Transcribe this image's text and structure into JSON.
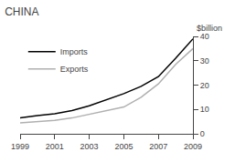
{
  "chart_data": {
    "type": "line",
    "title": "CHINA",
    "ylabel": "$billion",
    "x": [
      1999,
      2000,
      2001,
      2002,
      2003,
      2004,
      2005,
      2006,
      2007,
      2008,
      2009
    ],
    "series": [
      {
        "name": "Imports",
        "color": "#000000",
        "values": [
          6.5,
          7.5,
          8.2,
          9.5,
          11.5,
          14.0,
          16.5,
          19.5,
          23.5,
          31.0,
          39.0
        ]
      },
      {
        "name": "Exports",
        "color": "#b0b0b0",
        "values": [
          4.5,
          5.0,
          5.5,
          6.5,
          8.0,
          9.5,
          11.0,
          15.0,
          20.5,
          28.5,
          35.0
        ]
      }
    ],
    "xlim": [
      1999,
      2009
    ],
    "xticks": [
      1999,
      2001,
      2003,
      2005,
      2007,
      2009
    ],
    "ylim": [
      0,
      40
    ],
    "yticks": [
      0,
      10,
      20,
      30,
      40
    ],
    "grid": false,
    "legend": "upper left"
  }
}
